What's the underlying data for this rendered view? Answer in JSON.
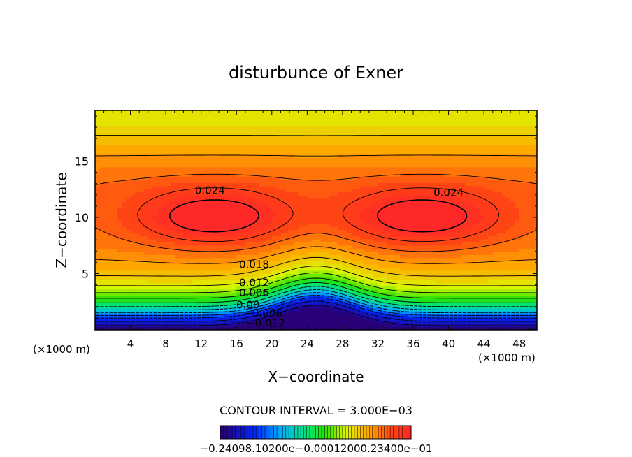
{
  "chart_data": {
    "type": "contour",
    "title": "disturbunce of Exner",
    "xlabel": "X−coordinate",
    "ylabel": "Z−coordinate",
    "x_unit": "(×1000 m)",
    "y_unit": "(×1000 m)",
    "xlim": [
      0,
      50
    ],
    "ylim": [
      0,
      19.5
    ],
    "x_ticks": [
      "4",
      "8",
      "12",
      "16",
      "20",
      "24",
      "28",
      "32",
      "36",
      "40",
      "44",
      "48"
    ],
    "y_ticks": [
      "5",
      "10",
      "15"
    ],
    "contour_interval_text": "CONTOUR INTERVAL = 3.000E−03",
    "contour_labels": [
      {
        "text": "0.024",
        "x": 13.0,
        "z": 12.4
      },
      {
        "text": "0.024",
        "x": 40.0,
        "z": 12.2
      },
      {
        "text": "0.018",
        "x": 18.0,
        "z": 5.8
      },
      {
        "text": "0.012",
        "x": 18.0,
        "z": 4.2
      },
      {
        "text": "0.006",
        "x": 18.0,
        "z": 3.3
      },
      {
        "text": "0.00",
        "x": 17.3,
        "z": 2.2
      },
      {
        "text": "−0.006",
        "x": 19.0,
        "z": 1.5
      },
      {
        "text": "−0.012",
        "x": 19.3,
        "z": 0.6
      }
    ],
    "colorbar_label_text": "−0.24098.10200e−0.00012000.23400e−01",
    "colorbar_range": [
      -0.024,
      0.024
    ]
  }
}
